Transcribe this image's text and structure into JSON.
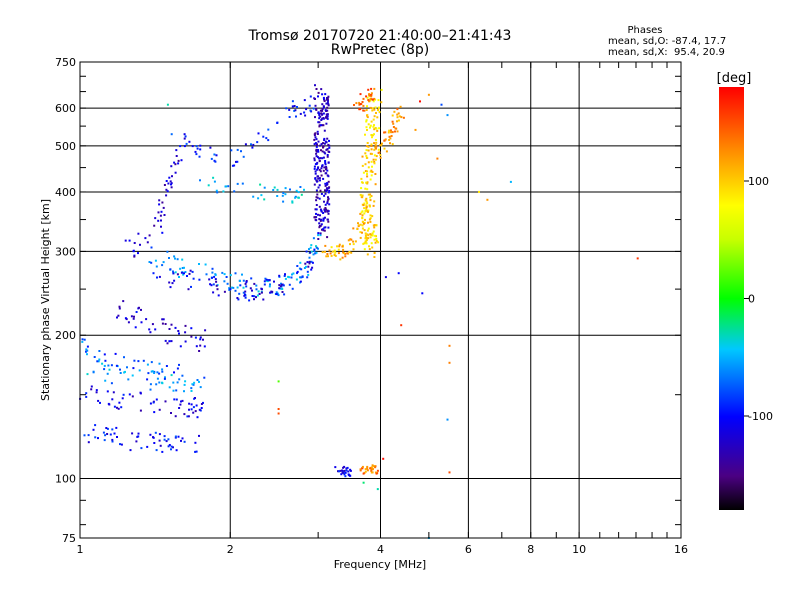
{
  "chart_data": {
    "type": "scatter",
    "title": "Tromsø 20170720 21:40:00–21:41:43",
    "subtitle": "RwPretec (8p)",
    "xlabel": "Frequency [MHz]",
    "ylabel": "Stationary phase Virtual Height [km]",
    "x_scale": "log",
    "y_scale": "log",
    "xlim": [
      1,
      16
    ],
    "ylim": [
      75,
      750
    ],
    "x_ticks": [
      1,
      2,
      4,
      6,
      8,
      10,
      16
    ],
    "x_tick_labels": [
      "1",
      "2",
      "4",
      "6",
      "8",
      "10",
      "16"
    ],
    "y_ticks": [
      75,
      100,
      200,
      300,
      400,
      500,
      600,
      750
    ],
    "y_tick_labels": [
      "75",
      "100",
      "200",
      "300",
      "400",
      "500",
      "600",
      "750"
    ],
    "grid": true,
    "phase_info": {
      "heading": "Phases",
      "line_o": "mean, sd,O: -87.4, 17.7",
      "line_x": "mean, sd,X:  95.4, 20.9"
    },
    "colorbar": {
      "label": "[deg]",
      "range": [
        -180,
        180
      ],
      "ticks": [
        100,
        0,
        -100
      ],
      "tick_labels": [
        "100",
        "0",
        "-100"
      ],
      "colormap": "rainbow"
    },
    "series": [
      {
        "traces": [
          {
            "kind": "band",
            "x": [
              1.0,
              1.1,
              1.2,
              1.35,
              1.5,
              1.65,
              1.75
            ],
            "y": [
              125,
              123,
              121,
              120,
              119,
              119,
              120
            ],
            "spread": 0.05,
            "n": 60,
            "phase": -100
          },
          {
            "kind": "band",
            "x": [
              1.0,
              1.1,
              1.25,
              1.4,
              1.55,
              1.7,
              1.75
            ],
            "y": [
              150,
              148,
              146,
              144,
              142,
              141,
              141
            ],
            "spread": 0.05,
            "n": 60,
            "phase": -110
          },
          {
            "kind": "band",
            "x": [
              1.0,
              1.15,
              1.3,
              1.45,
              1.6,
              1.75
            ],
            "y": [
              170,
              166,
              163,
              160,
              158,
              156
            ],
            "spread": 0.05,
            "n": 50,
            "phase": -60
          },
          {
            "kind": "band",
            "x": [
              1.2,
              1.3,
              1.4,
              1.5,
              1.6,
              1.7,
              1.8
            ],
            "y": [
              230,
              218,
              210,
              205,
              200,
              196,
              194
            ],
            "spread": 0.06,
            "n": 50,
            "phase": -115
          },
          {
            "kind": "band",
            "x": [
              1.25,
              1.35,
              1.45,
              1.5,
              1.55,
              1.6
            ],
            "y": [
              300,
              320,
              350,
              400,
              460,
              500
            ],
            "spread": 0.06,
            "n": 50,
            "phase": -120
          },
          {
            "kind": "band",
            "x": [
              1.3,
              1.5,
              1.7,
              1.9,
              2.1,
              2.3,
              2.5,
              2.7,
              2.9,
              3.0
            ],
            "y": [
              300,
              285,
              272,
              262,
              256,
              252,
              252,
              262,
              285,
              320
            ],
            "spread": 0.05,
            "n": 120,
            "phase": -60
          },
          {
            "kind": "band",
            "x": [
              1.4,
              1.6,
              1.8,
              2.0,
              2.2,
              2.4,
              2.6,
              2.8,
              2.95
            ],
            "y": [
              270,
              262,
              255,
              250,
              248,
              250,
              258,
              275,
              300
            ],
            "spread": 0.05,
            "n": 90,
            "phase": -110
          },
          {
            "kind": "band",
            "x": [
              1.55,
              1.7,
              1.85,
              2.0,
              2.2,
              2.45,
              2.65,
              2.85,
              3.0
            ],
            "y": [
              520,
              500,
              480,
              470,
              500,
              560,
              590,
              610,
              620
            ],
            "spread": 0.04,
            "n": 60,
            "phase": -95
          },
          {
            "kind": "band",
            "x": [
              1.7,
              1.9,
              2.1,
              2.3,
              2.5,
              2.65,
              2.8
            ],
            "y": [
              420,
              410,
              405,
              400,
              395,
              395,
              400
            ],
            "spread": 0.04,
            "n": 40,
            "phase": -50
          },
          {
            "kind": "band",
            "x": [
              1.0,
              1.05,
              1.15,
              1.25,
              1.35,
              1.45,
              1.6
            ],
            "y": [
              190,
              180,
              175,
              170,
              168,
              166,
              165
            ],
            "spread": 0.05,
            "n": 40,
            "phase": -75
          },
          {
            "kind": "band",
            "x": [
              3.05,
              3.05,
              3.05,
              3.05,
              3.05,
              3.05
            ],
            "y": [
              330,
              380,
              440,
              500,
              570,
              640
            ],
            "spread": 0.05,
            "n": 260,
            "phase": -125,
            "xspread": 0.035
          },
          {
            "kind": "band",
            "x": [
              3.85,
              3.8,
              3.75,
              3.8,
              3.85,
              3.9
            ],
            "y": [
              300,
              340,
              390,
              450,
              540,
              640
            ],
            "spread": 0.04,
            "n": 180,
            "phase": 95,
            "xspread": 0.035
          },
          {
            "kind": "band",
            "x": [
              3.1,
              3.3,
              3.5,
              3.65,
              3.75
            ],
            "y": [
              300,
              298,
              310,
              340,
              390
            ],
            "spread": 0.04,
            "n": 70,
            "phase": 110
          },
          {
            "kind": "band",
            "x": [
              3.9,
              4.05,
              4.2,
              4.3,
              4.4
            ],
            "y": [
              480,
              500,
              530,
              560,
              600
            ],
            "spread": 0.04,
            "n": 50,
            "phase": 120
          },
          {
            "kind": "band",
            "x": [
              3.6,
              3.7,
              3.8,
              3.9
            ],
            "y": [
              600,
              620,
              640,
              650
            ],
            "spread": 0.03,
            "n": 30,
            "phase": 140
          },
          {
            "kind": "band",
            "x": [
              3.3,
              3.35,
              3.4,
              3.45
            ],
            "y": [
              104,
              103,
              104,
              103
            ],
            "spread": 0.02,
            "n": 25,
            "phase": -110
          },
          {
            "kind": "band",
            "x": [
              3.65,
              3.75,
              3.85,
              3.95
            ],
            "y": [
              104,
              105,
              105,
              104
            ],
            "spread": 0.02,
            "n": 30,
            "phase": 130
          }
        ],
        "points": [
          {
            "x": 1.5,
            "y": 610,
            "phase": -30
          },
          {
            "x": 2.5,
            "y": 160,
            "phase": 20
          },
          {
            "x": 2.5,
            "y": 140,
            "phase": 150
          },
          {
            "x": 2.5,
            "y": 137,
            "phase": 150
          },
          {
            "x": 4.1,
            "y": 265,
            "phase": -110
          },
          {
            "x": 4.35,
            "y": 270,
            "phase": -100
          },
          {
            "x": 4.85,
            "y": 245,
            "phase": -100
          },
          {
            "x": 4.4,
            "y": 210,
            "phase": 160
          },
          {
            "x": 4.7,
            "y": 540,
            "phase": 120
          },
          {
            "x": 4.8,
            "y": 620,
            "phase": 175
          },
          {
            "x": 5.0,
            "y": 640,
            "phase": 120
          },
          {
            "x": 5.2,
            "y": 470,
            "phase": 130
          },
          {
            "x": 5.3,
            "y": 610,
            "phase": -80
          },
          {
            "x": 5.45,
            "y": 580,
            "phase": -60
          },
          {
            "x": 5.5,
            "y": 190,
            "phase": 130
          },
          {
            "x": 5.5,
            "y": 175,
            "phase": 130
          },
          {
            "x": 5.45,
            "y": 133,
            "phase": -60
          },
          {
            "x": 5.5,
            "y": 103,
            "phase": 150
          },
          {
            "x": 6.3,
            "y": 400,
            "phase": 90
          },
          {
            "x": 6.55,
            "y": 385,
            "phase": 120
          },
          {
            "x": 7.3,
            "y": 420,
            "phase": -50
          },
          {
            "x": 13.1,
            "y": 290,
            "phase": 160
          },
          {
            "x": 3.95,
            "y": 95,
            "phase": -30
          },
          {
            "x": 4.05,
            "y": 110,
            "phase": 175
          },
          {
            "x": 3.7,
            "y": 98,
            "phase": -20
          },
          {
            "x": 5.0,
            "y": 75,
            "phase": -50
          }
        ]
      }
    ]
  }
}
